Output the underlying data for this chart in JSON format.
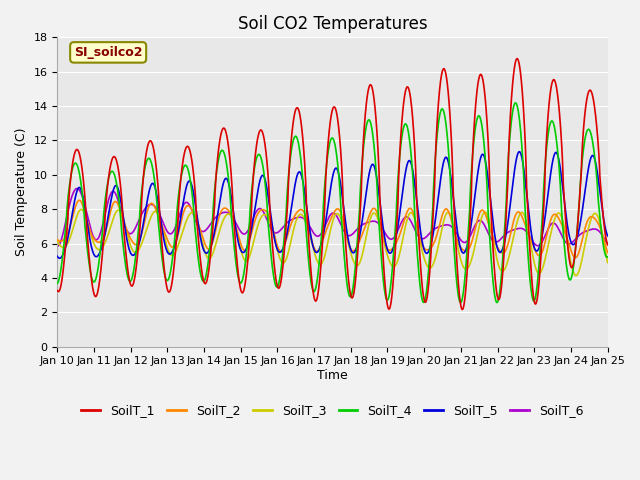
{
  "title": "Soil CO2 Temperatures",
  "xlabel": "Time",
  "ylabel": "Soil Temperature (C)",
  "annotation": "SI_soilco2",
  "ylim": [
    0,
    18
  ],
  "x_tick_labels": [
    "Jan 10",
    "Jan 11",
    "Jan 12",
    "Jan 13",
    "Jan 14",
    "Jan 15",
    "Jan 16",
    "Jan 17",
    "Jan 18",
    "Jan 19",
    "Jan 20",
    "Jan 21",
    "Jan 22",
    "Jan 23",
    "Jan 24",
    "Jan 25"
  ],
  "legend_labels": [
    "SoilT_1",
    "SoilT_2",
    "SoilT_3",
    "SoilT_4",
    "SoilT_5",
    "SoilT_6"
  ],
  "colors": [
    "#dd0000",
    "#ff8800",
    "#cccc00",
    "#00cc00",
    "#0000dd",
    "#aa00cc"
  ],
  "background_color": "#f2f2f2",
  "plot_bg_color": "#e8e8e8",
  "grid_color": "#ffffff",
  "title_fontsize": 12,
  "label_fontsize": 9,
  "tick_fontsize": 8,
  "legend_fontsize": 9
}
